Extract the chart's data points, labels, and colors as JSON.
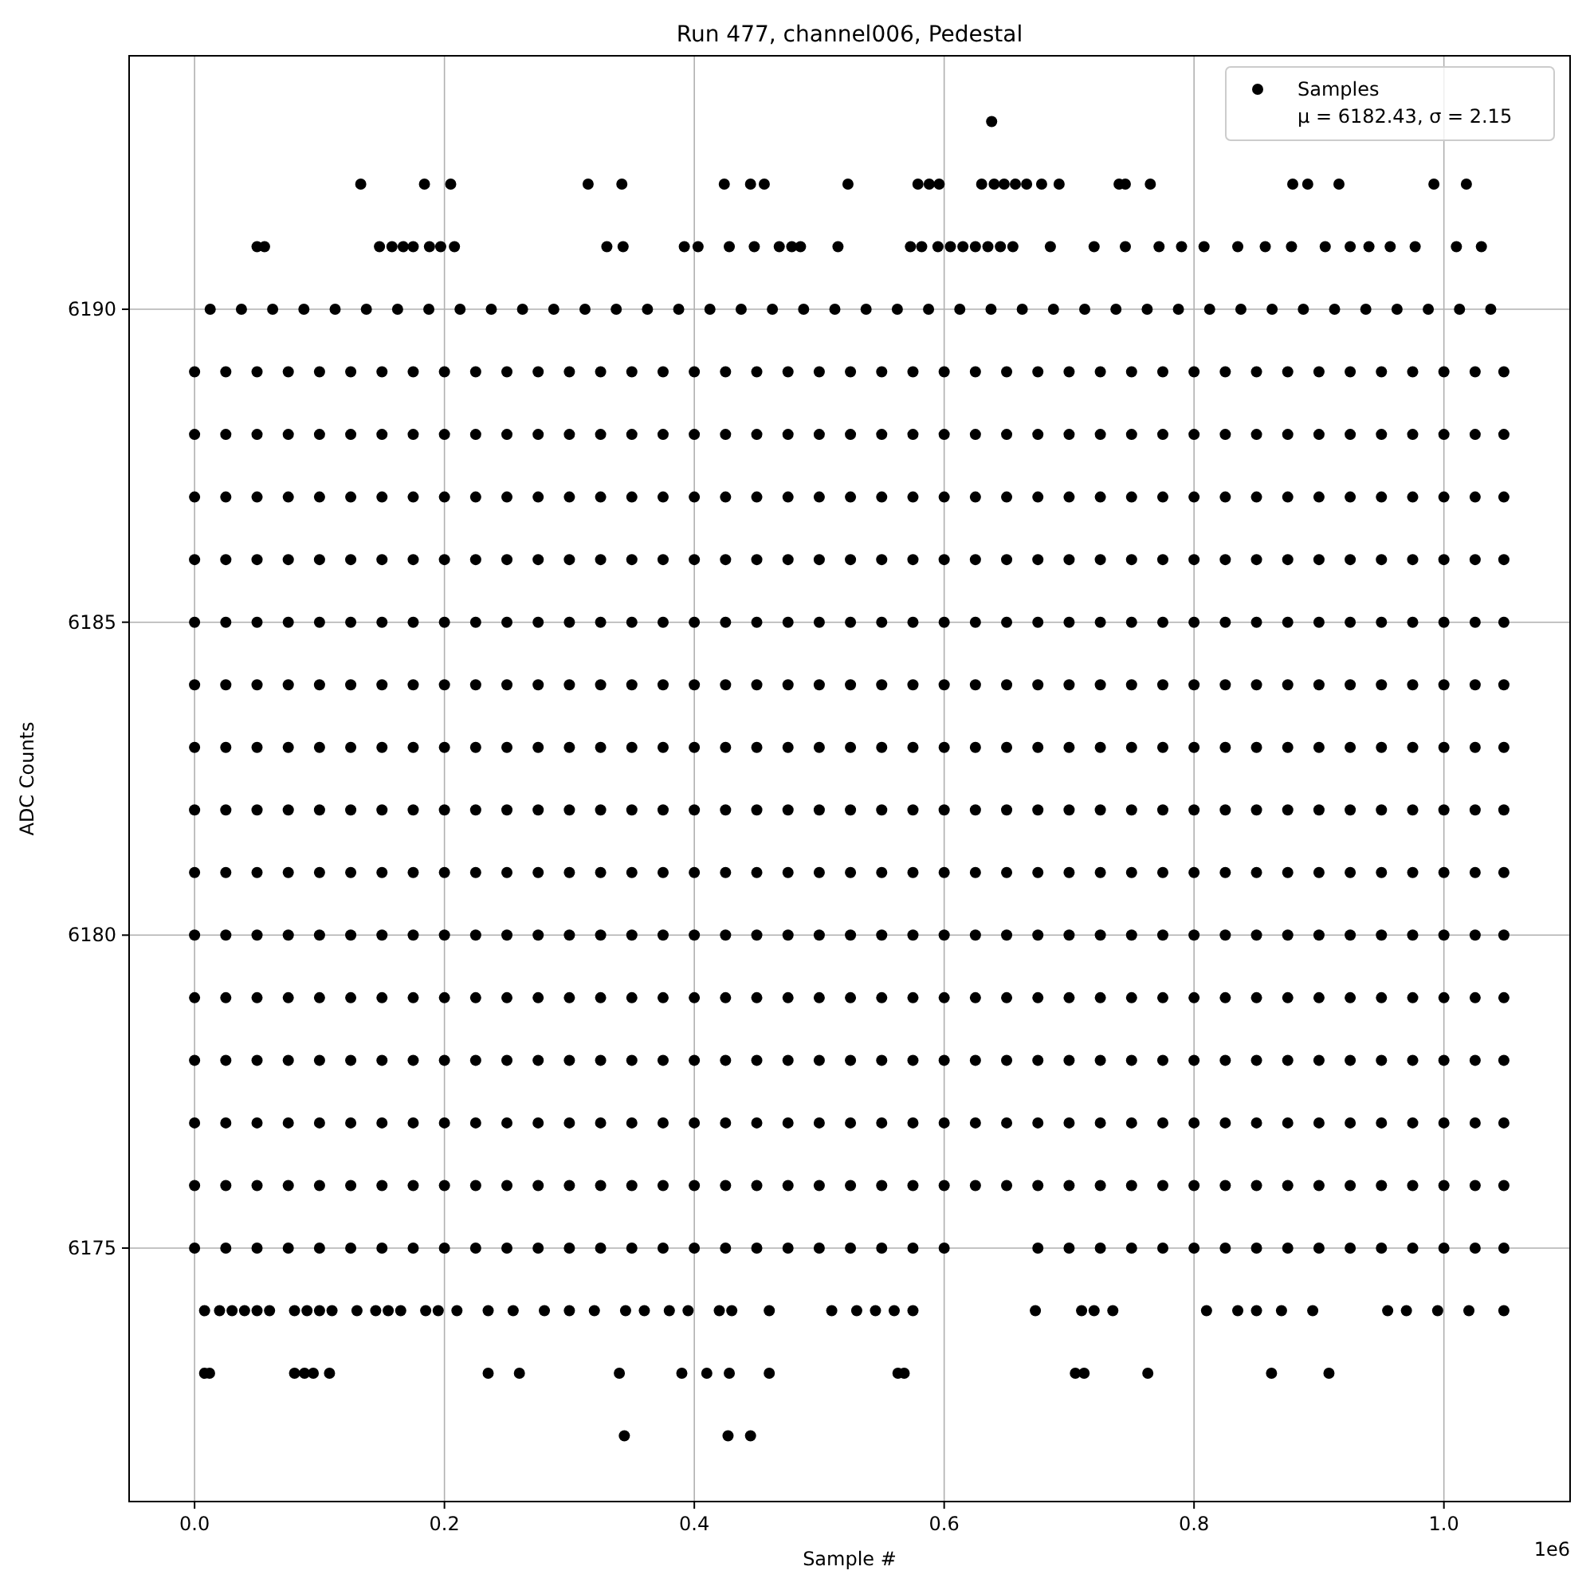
{
  "chart_data": {
    "type": "scatter",
    "title": "Run 477, channel006, Pedestal",
    "xlabel": "Sample #",
    "ylabel": "ADC Counts",
    "annotations": [
      "1e6"
    ],
    "xlim": [
      -0.0524,
      1.101
    ],
    "ylim": [
      6170.95,
      6194.05
    ],
    "xticks": [
      {
        "value": 0,
        "label": "0.0"
      },
      {
        "value": 0.2,
        "label": "0.2"
      },
      {
        "value": 0.4,
        "label": "0.4"
      },
      {
        "value": 0.6,
        "label": "0.6"
      },
      {
        "value": 0.8,
        "label": "0.8"
      },
      {
        "value": 1,
        "label": "1.0"
      }
    ],
    "yticks": [
      6175,
      6180,
      6185,
      6190
    ],
    "grid": true,
    "legend": "top right",
    "marker": "circle",
    "series": [
      {
        "name": "Samples\nμ = 6182.43, σ = 2.15",
        "color": "#000000",
        "x": [
          0.638
        ],
        "values": [
          6193
        ]
      },
      {
        "color": "#000000",
        "x": [
          0.133,
          0.184,
          0.205,
          0.315,
          0.342,
          0.424,
          0.445,
          0.456,
          0.523,
          0.579,
          0.588,
          0.596,
          0.63,
          0.64,
          0.648,
          0.657,
          0.666,
          0.678,
          0.692,
          0.74,
          0.745,
          0.765,
          0.879,
          0.891,
          0.916,
          0.992,
          1.018
        ],
        "values": [
          6192,
          6192,
          6192,
          6192,
          6192,
          6192,
          6192,
          6192,
          6192,
          6192,
          6192,
          6192,
          6192,
          6192,
          6192,
          6192,
          6192,
          6192,
          6192,
          6192,
          6192,
          6192,
          6192,
          6192,
          6192,
          6192,
          6192
        ]
      },
      {
        "color": "#000000",
        "x": [
          0.05,
          0.056,
          0.148,
          0.158,
          0.167,
          0.175,
          0.188,
          0.197,
          0.208,
          0.33,
          0.343,
          0.392,
          0.403,
          0.428,
          0.448,
          0.468,
          0.478,
          0.485,
          0.515,
          0.573,
          0.582,
          0.595,
          0.605,
          0.615,
          0.625,
          0.635,
          0.645,
          0.655,
          0.685,
          0.72,
          0.745,
          0.772,
          0.79,
          0.808,
          0.835,
          0.857,
          0.878,
          0.905,
          0.925,
          0.94,
          0.957,
          0.977,
          1.01,
          1.03
        ],
        "values": [
          6191,
          6191,
          6191,
          6191,
          6191,
          6191,
          6191,
          6191,
          6191,
          6191,
          6191,
          6191,
          6191,
          6191,
          6191,
          6191,
          6191,
          6191,
          6191,
          6191,
          6191,
          6191,
          6191,
          6191,
          6191,
          6191,
          6191,
          6191,
          6191,
          6191,
          6191,
          6191,
          6191,
          6191,
          6191,
          6191,
          6191,
          6191,
          6191,
          6191,
          6191,
          6191,
          6191,
          6191
        ]
      },
      {
        "color": "#000000",
        "x": [
          0.0125,
          0.0375,
          0.0625,
          0.0875,
          0.1125,
          0.1375,
          0.1625,
          0.1875,
          0.2125,
          0.2375,
          0.2625,
          0.2875,
          0.3125,
          0.3375,
          0.3625,
          0.3875,
          0.4125,
          0.4375,
          0.4625,
          0.4875,
          0.5125,
          0.5375,
          0.5625,
          0.5875,
          0.6125,
          0.6375,
          0.6625,
          0.6875,
          0.7125,
          0.7375,
          0.7625,
          0.7875,
          0.8125,
          0.8375,
          0.8625,
          0.8875,
          0.9125,
          0.9375,
          0.9625,
          0.9875,
          1.0125,
          1.0375
        ],
        "values": [
          6190,
          6190,
          6190,
          6190,
          6190,
          6190,
          6190,
          6190,
          6190,
          6190,
          6190,
          6190,
          6190,
          6190,
          6190,
          6190,
          6190,
          6190,
          6190,
          6190,
          6190,
          6190,
          6190,
          6190,
          6190,
          6190,
          6190,
          6190,
          6190,
          6190,
          6190,
          6190,
          6190,
          6190,
          6190,
          6190,
          6190,
          6190,
          6190,
          6190,
          6190,
          6190
        ]
      },
      {
        "color": "#000000",
        "x": [
          0,
          0.025,
          0.05,
          0.075,
          0.1,
          0.125,
          0.15,
          0.175,
          0.2,
          0.225,
          0.25,
          0.275,
          0.3,
          0.325,
          0.35,
          0.375,
          0.4,
          0.425,
          0.45,
          0.475,
          0.5,
          0.525,
          0.55,
          0.575,
          0.6,
          0.625,
          0.65,
          0.675,
          0.7,
          0.725,
          0.75,
          0.775,
          0.8,
          0.825,
          0.85,
          0.875,
          0.9,
          0.925,
          0.95,
          0.975,
          1,
          1.025,
          1.048
        ],
        "values": [
          6189,
          6189,
          6189,
          6189,
          6189,
          6189,
          6189,
          6189,
          6189,
          6189,
          6189,
          6189,
          6189,
          6189,
          6189,
          6189,
          6189,
          6189,
          6189,
          6189,
          6189,
          6189,
          6189,
          6189,
          6189,
          6189,
          6189,
          6189,
          6189,
          6189,
          6189,
          6189,
          6189,
          6189,
          6189,
          6189,
          6189,
          6189,
          6189,
          6189,
          6189,
          6189,
          6189
        ]
      },
      {
        "color": "#000000",
        "x": [
          0,
          0.025,
          0.05,
          0.075,
          0.1,
          0.125,
          0.15,
          0.175,
          0.2,
          0.225,
          0.25,
          0.275,
          0.3,
          0.325,
          0.35,
          0.375,
          0.4,
          0.425,
          0.45,
          0.475,
          0.5,
          0.525,
          0.55,
          0.575,
          0.6,
          0.625,
          0.65,
          0.675,
          0.7,
          0.725,
          0.75,
          0.775,
          0.8,
          0.825,
          0.85,
          0.875,
          0.9,
          0.925,
          0.95,
          0.975,
          1,
          1.025,
          1.048
        ],
        "values": [
          6188,
          6188,
          6188,
          6188,
          6188,
          6188,
          6188,
          6188,
          6188,
          6188,
          6188,
          6188,
          6188,
          6188,
          6188,
          6188,
          6188,
          6188,
          6188,
          6188,
          6188,
          6188,
          6188,
          6188,
          6188,
          6188,
          6188,
          6188,
          6188,
          6188,
          6188,
          6188,
          6188,
          6188,
          6188,
          6188,
          6188,
          6188,
          6188,
          6188,
          6188,
          6188,
          6188
        ]
      },
      {
        "color": "#000000",
        "x": [
          0,
          0.025,
          0.05,
          0.075,
          0.1,
          0.125,
          0.15,
          0.175,
          0.2,
          0.225,
          0.25,
          0.275,
          0.3,
          0.325,
          0.35,
          0.375,
          0.4,
          0.425,
          0.45,
          0.475,
          0.5,
          0.525,
          0.55,
          0.575,
          0.6,
          0.625,
          0.65,
          0.675,
          0.7,
          0.725,
          0.75,
          0.775,
          0.8,
          0.825,
          0.85,
          0.875,
          0.9,
          0.925,
          0.95,
          0.975,
          1,
          1.025,
          1.048
        ],
        "values": [
          6187,
          6187,
          6187,
          6187,
          6187,
          6187,
          6187,
          6187,
          6187,
          6187,
          6187,
          6187,
          6187,
          6187,
          6187,
          6187,
          6187,
          6187,
          6187,
          6187,
          6187,
          6187,
          6187,
          6187,
          6187,
          6187,
          6187,
          6187,
          6187,
          6187,
          6187,
          6187,
          6187,
          6187,
          6187,
          6187,
          6187,
          6187,
          6187,
          6187,
          6187,
          6187,
          6187
        ]
      },
      {
        "color": "#000000",
        "x": [
          0,
          0.025,
          0.05,
          0.075,
          0.1,
          0.125,
          0.15,
          0.175,
          0.2,
          0.225,
          0.25,
          0.275,
          0.3,
          0.325,
          0.35,
          0.375,
          0.4,
          0.425,
          0.45,
          0.475,
          0.5,
          0.525,
          0.55,
          0.575,
          0.6,
          0.625,
          0.65,
          0.675,
          0.7,
          0.725,
          0.75,
          0.775,
          0.8,
          0.825,
          0.85,
          0.875,
          0.9,
          0.925,
          0.95,
          0.975,
          1,
          1.025,
          1.048
        ],
        "values": [
          6186,
          6186,
          6186,
          6186,
          6186,
          6186,
          6186,
          6186,
          6186,
          6186,
          6186,
          6186,
          6186,
          6186,
          6186,
          6186,
          6186,
          6186,
          6186,
          6186,
          6186,
          6186,
          6186,
          6186,
          6186,
          6186,
          6186,
          6186,
          6186,
          6186,
          6186,
          6186,
          6186,
          6186,
          6186,
          6186,
          6186,
          6186,
          6186,
          6186,
          6186,
          6186,
          6186
        ]
      },
      {
        "color": "#000000",
        "x": [
          0,
          0.025,
          0.05,
          0.075,
          0.1,
          0.125,
          0.15,
          0.175,
          0.2,
          0.225,
          0.25,
          0.275,
          0.3,
          0.325,
          0.35,
          0.375,
          0.4,
          0.425,
          0.45,
          0.475,
          0.5,
          0.525,
          0.55,
          0.575,
          0.6,
          0.625,
          0.65,
          0.675,
          0.7,
          0.725,
          0.75,
          0.775,
          0.8,
          0.825,
          0.85,
          0.875,
          0.9,
          0.925,
          0.95,
          0.975,
          1,
          1.025,
          1.048
        ],
        "values": [
          6185,
          6185,
          6185,
          6185,
          6185,
          6185,
          6185,
          6185,
          6185,
          6185,
          6185,
          6185,
          6185,
          6185,
          6185,
          6185,
          6185,
          6185,
          6185,
          6185,
          6185,
          6185,
          6185,
          6185,
          6185,
          6185,
          6185,
          6185,
          6185,
          6185,
          6185,
          6185,
          6185,
          6185,
          6185,
          6185,
          6185,
          6185,
          6185,
          6185,
          6185,
          6185,
          6185
        ]
      },
      {
        "color": "#000000",
        "x": [
          0,
          0.025,
          0.05,
          0.075,
          0.1,
          0.125,
          0.15,
          0.175,
          0.2,
          0.225,
          0.25,
          0.275,
          0.3,
          0.325,
          0.35,
          0.375,
          0.4,
          0.425,
          0.45,
          0.475,
          0.5,
          0.525,
          0.55,
          0.575,
          0.6,
          0.625,
          0.65,
          0.675,
          0.7,
          0.725,
          0.75,
          0.775,
          0.8,
          0.825,
          0.85,
          0.875,
          0.9,
          0.925,
          0.95,
          0.975,
          1,
          1.025,
          1.048
        ],
        "values": [
          6184,
          6184,
          6184,
          6184,
          6184,
          6184,
          6184,
          6184,
          6184,
          6184,
          6184,
          6184,
          6184,
          6184,
          6184,
          6184,
          6184,
          6184,
          6184,
          6184,
          6184,
          6184,
          6184,
          6184,
          6184,
          6184,
          6184,
          6184,
          6184,
          6184,
          6184,
          6184,
          6184,
          6184,
          6184,
          6184,
          6184,
          6184,
          6184,
          6184,
          6184,
          6184,
          6184
        ]
      },
      {
        "color": "#000000",
        "x": [
          0,
          0.025,
          0.05,
          0.075,
          0.1,
          0.125,
          0.15,
          0.175,
          0.2,
          0.225,
          0.25,
          0.275,
          0.3,
          0.325,
          0.35,
          0.375,
          0.4,
          0.425,
          0.45,
          0.475,
          0.5,
          0.525,
          0.55,
          0.575,
          0.6,
          0.625,
          0.65,
          0.675,
          0.7,
          0.725,
          0.75,
          0.775,
          0.8,
          0.825,
          0.85,
          0.875,
          0.9,
          0.925,
          0.95,
          0.975,
          1,
          1.025,
          1.048
        ],
        "values": [
          6183,
          6183,
          6183,
          6183,
          6183,
          6183,
          6183,
          6183,
          6183,
          6183,
          6183,
          6183,
          6183,
          6183,
          6183,
          6183,
          6183,
          6183,
          6183,
          6183,
          6183,
          6183,
          6183,
          6183,
          6183,
          6183,
          6183,
          6183,
          6183,
          6183,
          6183,
          6183,
          6183,
          6183,
          6183,
          6183,
          6183,
          6183,
          6183,
          6183,
          6183,
          6183,
          6183
        ]
      },
      {
        "color": "#000000",
        "x": [
          0,
          0.025,
          0.05,
          0.075,
          0.1,
          0.125,
          0.15,
          0.175,
          0.2,
          0.225,
          0.25,
          0.275,
          0.3,
          0.325,
          0.35,
          0.375,
          0.4,
          0.425,
          0.45,
          0.475,
          0.5,
          0.525,
          0.55,
          0.575,
          0.6,
          0.625,
          0.65,
          0.675,
          0.7,
          0.725,
          0.75,
          0.775,
          0.8,
          0.825,
          0.85,
          0.875,
          0.9,
          0.925,
          0.95,
          0.975,
          1,
          1.025,
          1.048
        ],
        "values": [
          6182,
          6182,
          6182,
          6182,
          6182,
          6182,
          6182,
          6182,
          6182,
          6182,
          6182,
          6182,
          6182,
          6182,
          6182,
          6182,
          6182,
          6182,
          6182,
          6182,
          6182,
          6182,
          6182,
          6182,
          6182,
          6182,
          6182,
          6182,
          6182,
          6182,
          6182,
          6182,
          6182,
          6182,
          6182,
          6182,
          6182,
          6182,
          6182,
          6182,
          6182,
          6182,
          6182
        ]
      },
      {
        "color": "#000000",
        "x": [
          0,
          0.025,
          0.05,
          0.075,
          0.1,
          0.125,
          0.15,
          0.175,
          0.2,
          0.225,
          0.25,
          0.275,
          0.3,
          0.325,
          0.35,
          0.375,
          0.4,
          0.425,
          0.45,
          0.475,
          0.5,
          0.525,
          0.55,
          0.575,
          0.6,
          0.625,
          0.65,
          0.675,
          0.7,
          0.725,
          0.75,
          0.775,
          0.8,
          0.825,
          0.85,
          0.875,
          0.9,
          0.925,
          0.95,
          0.975,
          1,
          1.025,
          1.048
        ],
        "values": [
          6181,
          6181,
          6181,
          6181,
          6181,
          6181,
          6181,
          6181,
          6181,
          6181,
          6181,
          6181,
          6181,
          6181,
          6181,
          6181,
          6181,
          6181,
          6181,
          6181,
          6181,
          6181,
          6181,
          6181,
          6181,
          6181,
          6181,
          6181,
          6181,
          6181,
          6181,
          6181,
          6181,
          6181,
          6181,
          6181,
          6181,
          6181,
          6181,
          6181,
          6181,
          6181,
          6181
        ]
      },
      {
        "color": "#000000",
        "x": [
          0,
          0.025,
          0.05,
          0.075,
          0.1,
          0.125,
          0.15,
          0.175,
          0.2,
          0.225,
          0.25,
          0.275,
          0.3,
          0.325,
          0.35,
          0.375,
          0.4,
          0.425,
          0.45,
          0.475,
          0.5,
          0.525,
          0.55,
          0.575,
          0.6,
          0.625,
          0.65,
          0.675,
          0.7,
          0.725,
          0.75,
          0.775,
          0.8,
          0.825,
          0.85,
          0.875,
          0.9,
          0.925,
          0.95,
          0.975,
          1,
          1.025,
          1.048
        ],
        "values": [
          6180,
          6180,
          6180,
          6180,
          6180,
          6180,
          6180,
          6180,
          6180,
          6180,
          6180,
          6180,
          6180,
          6180,
          6180,
          6180,
          6180,
          6180,
          6180,
          6180,
          6180,
          6180,
          6180,
          6180,
          6180,
          6180,
          6180,
          6180,
          6180,
          6180,
          6180,
          6180,
          6180,
          6180,
          6180,
          6180,
          6180,
          6180,
          6180,
          6180,
          6180,
          6180,
          6180
        ]
      },
      {
        "color": "#000000",
        "x": [
          0,
          0.025,
          0.05,
          0.075,
          0.1,
          0.125,
          0.15,
          0.175,
          0.2,
          0.225,
          0.25,
          0.275,
          0.3,
          0.325,
          0.35,
          0.375,
          0.4,
          0.425,
          0.45,
          0.475,
          0.5,
          0.525,
          0.55,
          0.575,
          0.6,
          0.625,
          0.65,
          0.675,
          0.7,
          0.725,
          0.75,
          0.775,
          0.8,
          0.825,
          0.85,
          0.875,
          0.9,
          0.925,
          0.95,
          0.975,
          1,
          1.025,
          1.048
        ],
        "values": [
          6179,
          6179,
          6179,
          6179,
          6179,
          6179,
          6179,
          6179,
          6179,
          6179,
          6179,
          6179,
          6179,
          6179,
          6179,
          6179,
          6179,
          6179,
          6179,
          6179,
          6179,
          6179,
          6179,
          6179,
          6179,
          6179,
          6179,
          6179,
          6179,
          6179,
          6179,
          6179,
          6179,
          6179,
          6179,
          6179,
          6179,
          6179,
          6179,
          6179,
          6179,
          6179,
          6179
        ]
      },
      {
        "color": "#000000",
        "x": [
          0,
          0.025,
          0.05,
          0.075,
          0.1,
          0.125,
          0.15,
          0.175,
          0.2,
          0.225,
          0.25,
          0.275,
          0.3,
          0.325,
          0.35,
          0.375,
          0.4,
          0.425,
          0.45,
          0.475,
          0.5,
          0.525,
          0.55,
          0.575,
          0.6,
          0.625,
          0.65,
          0.675,
          0.7,
          0.725,
          0.75,
          0.775,
          0.8,
          0.825,
          0.85,
          0.875,
          0.9,
          0.925,
          0.95,
          0.975,
          1,
          1.025,
          1.048
        ],
        "values": [
          6178,
          6178,
          6178,
          6178,
          6178,
          6178,
          6178,
          6178,
          6178,
          6178,
          6178,
          6178,
          6178,
          6178,
          6178,
          6178,
          6178,
          6178,
          6178,
          6178,
          6178,
          6178,
          6178,
          6178,
          6178,
          6178,
          6178,
          6178,
          6178,
          6178,
          6178,
          6178,
          6178,
          6178,
          6178,
          6178,
          6178,
          6178,
          6178,
          6178,
          6178,
          6178,
          6178
        ]
      },
      {
        "color": "#000000",
        "x": [
          0,
          0.025,
          0.05,
          0.075,
          0.1,
          0.125,
          0.15,
          0.175,
          0.2,
          0.225,
          0.25,
          0.275,
          0.3,
          0.325,
          0.35,
          0.375,
          0.4,
          0.425,
          0.45,
          0.475,
          0.5,
          0.525,
          0.55,
          0.575,
          0.6,
          0.625,
          0.65,
          0.675,
          0.7,
          0.725,
          0.75,
          0.775,
          0.8,
          0.825,
          0.85,
          0.875,
          0.9,
          0.925,
          0.95,
          0.975,
          1,
          1.025,
          1.048
        ],
        "values": [
          6177,
          6177,
          6177,
          6177,
          6177,
          6177,
          6177,
          6177,
          6177,
          6177,
          6177,
          6177,
          6177,
          6177,
          6177,
          6177,
          6177,
          6177,
          6177,
          6177,
          6177,
          6177,
          6177,
          6177,
          6177,
          6177,
          6177,
          6177,
          6177,
          6177,
          6177,
          6177,
          6177,
          6177,
          6177,
          6177,
          6177,
          6177,
          6177,
          6177,
          6177,
          6177,
          6177
        ]
      },
      {
        "color": "#000000",
        "x": [
          0,
          0.025,
          0.05,
          0.075,
          0.1,
          0.125,
          0.15,
          0.175,
          0.2,
          0.225,
          0.25,
          0.275,
          0.3,
          0.325,
          0.35,
          0.375,
          0.4,
          0.425,
          0.45,
          0.475,
          0.5,
          0.525,
          0.55,
          0.575,
          0.6,
          0.625,
          0.65,
          0.675,
          0.7,
          0.725,
          0.75,
          0.775,
          0.8,
          0.825,
          0.85,
          0.875,
          0.9,
          0.925,
          0.95,
          0.975,
          1,
          1.025,
          1.048
        ],
        "values": [
          6176,
          6176,
          6176,
          6176,
          6176,
          6176,
          6176,
          6176,
          6176,
          6176,
          6176,
          6176,
          6176,
          6176,
          6176,
          6176,
          6176,
          6176,
          6176,
          6176,
          6176,
          6176,
          6176,
          6176,
          6176,
          6176,
          6176,
          6176,
          6176,
          6176,
          6176,
          6176,
          6176,
          6176,
          6176,
          6176,
          6176,
          6176,
          6176,
          6176,
          6176,
          6176,
          6176
        ]
      },
      {
        "color": "#000000",
        "x": [
          0,
          0.025,
          0.05,
          0.075,
          0.1,
          0.125,
          0.15,
          0.175,
          0.2,
          0.225,
          0.25,
          0.275,
          0.3,
          0.325,
          0.35,
          0.375,
          0.4,
          0.425,
          0.45,
          0.475,
          0.5,
          0.525,
          0.55,
          0.575,
          0.6,
          0.675,
          0.7,
          0.725,
          0.75,
          0.775,
          0.8,
          0.825,
          0.85,
          0.875,
          0.9,
          0.925,
          0.95,
          0.975,
          1,
          1.025,
          1.048
        ],
        "values": [
          6175,
          6175,
          6175,
          6175,
          6175,
          6175,
          6175,
          6175,
          6175,
          6175,
          6175,
          6175,
          6175,
          6175,
          6175,
          6175,
          6175,
          6175,
          6175,
          6175,
          6175,
          6175,
          6175,
          6175,
          6175,
          6175,
          6175,
          6175,
          6175,
          6175,
          6175,
          6175,
          6175,
          6175,
          6175,
          6175,
          6175,
          6175,
          6175,
          6175,
          6175
        ]
      },
      {
        "color": "#000000",
        "x": [
          0.008,
          0.02,
          0.03,
          0.04,
          0.05,
          0.06,
          0.08,
          0.09,
          0.1,
          0.11,
          0.13,
          0.145,
          0.155,
          0.165,
          0.185,
          0.195,
          0.21,
          0.235,
          0.255,
          0.28,
          0.3,
          0.32,
          0.345,
          0.36,
          0.38,
          0.395,
          0.42,
          0.43,
          0.46,
          0.51,
          0.53,
          0.545,
          0.56,
          0.575,
          0.673,
          0.71,
          0.72,
          0.735,
          0.81,
          0.835,
          0.85,
          0.87,
          0.895,
          0.955,
          0.97,
          0.995,
          1.02,
          1.048
        ],
        "values": [
          6174,
          6174,
          6174,
          6174,
          6174,
          6174,
          6174,
          6174,
          6174,
          6174,
          6174,
          6174,
          6174,
          6174,
          6174,
          6174,
          6174,
          6174,
          6174,
          6174,
          6174,
          6174,
          6174,
          6174,
          6174,
          6174,
          6174,
          6174,
          6174,
          6174,
          6174,
          6174,
          6174,
          6174,
          6174,
          6174,
          6174,
          6174,
          6174,
          6174,
          6174,
          6174,
          6174,
          6174,
          6174,
          6174,
          6174,
          6174
        ]
      },
      {
        "color": "#000000",
        "x": [
          0.008,
          0.012,
          0.08,
          0.088,
          0.095,
          0.108,
          0.235,
          0.26,
          0.34,
          0.39,
          0.41,
          0.428,
          0.46,
          0.563,
          0.568,
          0.705,
          0.712,
          0.763,
          0.862,
          0.908
        ],
        "values": [
          6173,
          6173,
          6173,
          6173,
          6173,
          6173,
          6173,
          6173,
          6173,
          6173,
          6173,
          6173,
          6173,
          6173,
          6173,
          6173,
          6173,
          6173,
          6173,
          6173
        ]
      },
      {
        "color": "#000000",
        "x": [
          0.344,
          0.427,
          0.445
        ],
        "values": [
          6172,
          6172,
          6172
        ]
      }
    ]
  }
}
